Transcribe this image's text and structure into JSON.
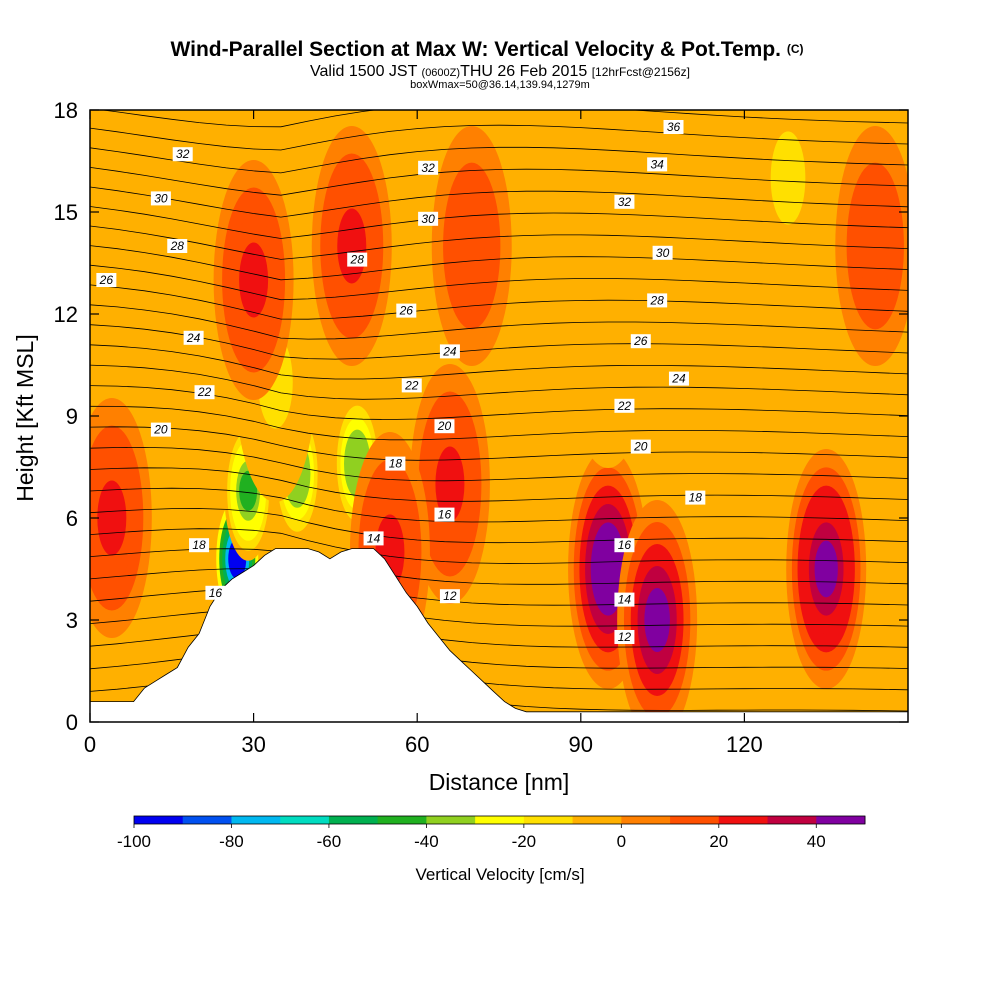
{
  "chart_data": {
    "type": "heatmap",
    "title": "Wind-Parallel Section at Max W: Vertical Velocity & Pot.Temp.",
    "title_mark": "(C)",
    "subtitle_parts": [
      "Valid 1500 JST",
      "(0600Z)",
      "THU 26 Feb 2015",
      "[12hrFcst@2156z]"
    ],
    "subtitle2": "boxWmax=50@36.14,139.94,1279m",
    "xlabel": "Distance [nm]",
    "ylabel": "Height [Kft MSL]",
    "xlim": [
      0,
      150
    ],
    "ylim": [
      0,
      18
    ],
    "x_ticks": [
      "0",
      "30",
      "60",
      "90",
      "120"
    ],
    "y_ticks": [
      "0",
      "3",
      "6",
      "9",
      "12",
      "15",
      "18"
    ],
    "colorbar": {
      "label": "Vertical Velocity [cm/s]",
      "ticks": [
        "-100",
        "-80",
        "-60",
        "-40",
        "-20",
        "0",
        "20",
        "40"
      ],
      "range": [
        -100,
        50
      ],
      "colors": [
        "#0000f0",
        "#0050f0",
        "#00b8f0",
        "#00dcc0",
        "#00b050",
        "#20b020",
        "#90d020",
        "#ffff00",
        "#ffe000",
        "#ffb000",
        "#ff8000",
        "#ff5000",
        "#f01010",
        "#c00040",
        "#8000a0"
      ]
    },
    "terrain_profile_kft": [
      [
        0,
        0.6
      ],
      [
        8,
        0.6
      ],
      [
        10,
        1.0
      ],
      [
        12,
        1.2
      ],
      [
        14,
        1.4
      ],
      [
        16,
        1.6
      ],
      [
        18,
        2.2
      ],
      [
        20,
        2.6
      ],
      [
        22,
        3.4
      ],
      [
        24,
        3.9
      ],
      [
        26,
        4.2
      ],
      [
        28,
        4.4
      ],
      [
        30,
        4.6
      ],
      [
        32,
        4.9
      ],
      [
        34,
        5.1
      ],
      [
        36,
        5.1
      ],
      [
        38,
        5.1
      ],
      [
        40,
        5.1
      ],
      [
        42,
        5.0
      ],
      [
        44,
        4.8
      ],
      [
        46,
        5.0
      ],
      [
        48,
        5.1
      ],
      [
        50,
        5.1
      ],
      [
        52,
        5.1
      ],
      [
        54,
        4.8
      ],
      [
        56,
        4.3
      ],
      [
        58,
        3.8
      ],
      [
        60,
        3.4
      ],
      [
        62,
        2.9
      ],
      [
        64,
        2.5
      ],
      [
        66,
        2.1
      ],
      [
        68,
        1.8
      ],
      [
        70,
        1.5
      ],
      [
        72,
        1.2
      ],
      [
        74,
        0.9
      ],
      [
        76,
        0.6
      ],
      [
        78,
        0.4
      ],
      [
        80,
        0.3
      ],
      [
        150,
        0.3
      ]
    ],
    "velocity_field_cm_s": [
      {
        "x": 27,
        "y": 4.8,
        "w": -95
      },
      {
        "x": 29,
        "y": 6.8,
        "w": -45
      },
      {
        "x": 38,
        "y": 7.3,
        "w": -40
      },
      {
        "x": 49,
        "y": 7.6,
        "w": -40
      },
      {
        "x": 34,
        "y": 10,
        "w": -15
      },
      {
        "x": 18,
        "y": 14,
        "w": -5
      },
      {
        "x": 30,
        "y": 13,
        "w": 25
      },
      {
        "x": 4,
        "y": 6,
        "w": 25
      },
      {
        "x": 48,
        "y": 14,
        "w": 25
      },
      {
        "x": 66,
        "y": 7,
        "w": 25
      },
      {
        "x": 55,
        "y": 5,
        "w": 25
      },
      {
        "x": 95,
        "y": 4.5,
        "w": 50
      },
      {
        "x": 104,
        "y": 3,
        "w": 40
      },
      {
        "x": 135,
        "y": 4.5,
        "w": 45
      },
      {
        "x": 95,
        "y": 11,
        "w": -10
      },
      {
        "x": 70,
        "y": 14,
        "w": 15
      },
      {
        "x": 128,
        "y": 16,
        "w": -15
      },
      {
        "x": 144,
        "y": 14,
        "w": 15
      }
    ],
    "theta_contour_labels": [
      {
        "x": 17,
        "y": 16.7,
        "text": "32"
      },
      {
        "x": 13,
        "y": 15.4,
        "text": "30"
      },
      {
        "x": 16,
        "y": 14.0,
        "text": "28"
      },
      {
        "x": 3,
        "y": 13.0,
        "text": "26"
      },
      {
        "x": 19,
        "y": 11.3,
        "text": "24"
      },
      {
        "x": 21,
        "y": 9.7,
        "text": "22"
      },
      {
        "x": 13,
        "y": 8.6,
        "text": "20"
      },
      {
        "x": 20,
        "y": 5.2,
        "text": "18"
      },
      {
        "x": 23,
        "y": 3.8,
        "text": "16"
      },
      {
        "x": 62,
        "y": 16.3,
        "text": "32"
      },
      {
        "x": 62,
        "y": 14.8,
        "text": "30"
      },
      {
        "x": 49,
        "y": 13.6,
        "text": "28"
      },
      {
        "x": 58,
        "y": 12.1,
        "text": "26"
      },
      {
        "x": 66,
        "y": 10.9,
        "text": "24"
      },
      {
        "x": 59,
        "y": 9.9,
        "text": "22"
      },
      {
        "x": 65,
        "y": 8.7,
        "text": "20"
      },
      {
        "x": 56,
        "y": 7.6,
        "text": "18"
      },
      {
        "x": 65,
        "y": 6.1,
        "text": "16"
      },
      {
        "x": 52,
        "y": 5.4,
        "text": "14"
      },
      {
        "x": 66,
        "y": 3.7,
        "text": "12"
      },
      {
        "x": 107,
        "y": 17.5,
        "text": "36"
      },
      {
        "x": 104,
        "y": 16.4,
        "text": "34"
      },
      {
        "x": 98,
        "y": 15.3,
        "text": "32"
      },
      {
        "x": 105,
        "y": 13.8,
        "text": "30"
      },
      {
        "x": 104,
        "y": 12.4,
        "text": "28"
      },
      {
        "x": 101,
        "y": 11.2,
        "text": "26"
      },
      {
        "x": 108,
        "y": 10.1,
        "text": "24"
      },
      {
        "x": 98,
        "y": 9.3,
        "text": "22"
      },
      {
        "x": 101,
        "y": 8.1,
        "text": "20"
      },
      {
        "x": 111,
        "y": 6.6,
        "text": "18"
      },
      {
        "x": 98,
        "y": 5.2,
        "text": "16"
      },
      {
        "x": 98,
        "y": 3.6,
        "text": "14"
      },
      {
        "x": 98,
        "y": 2.5,
        "text": "12"
      }
    ]
  }
}
